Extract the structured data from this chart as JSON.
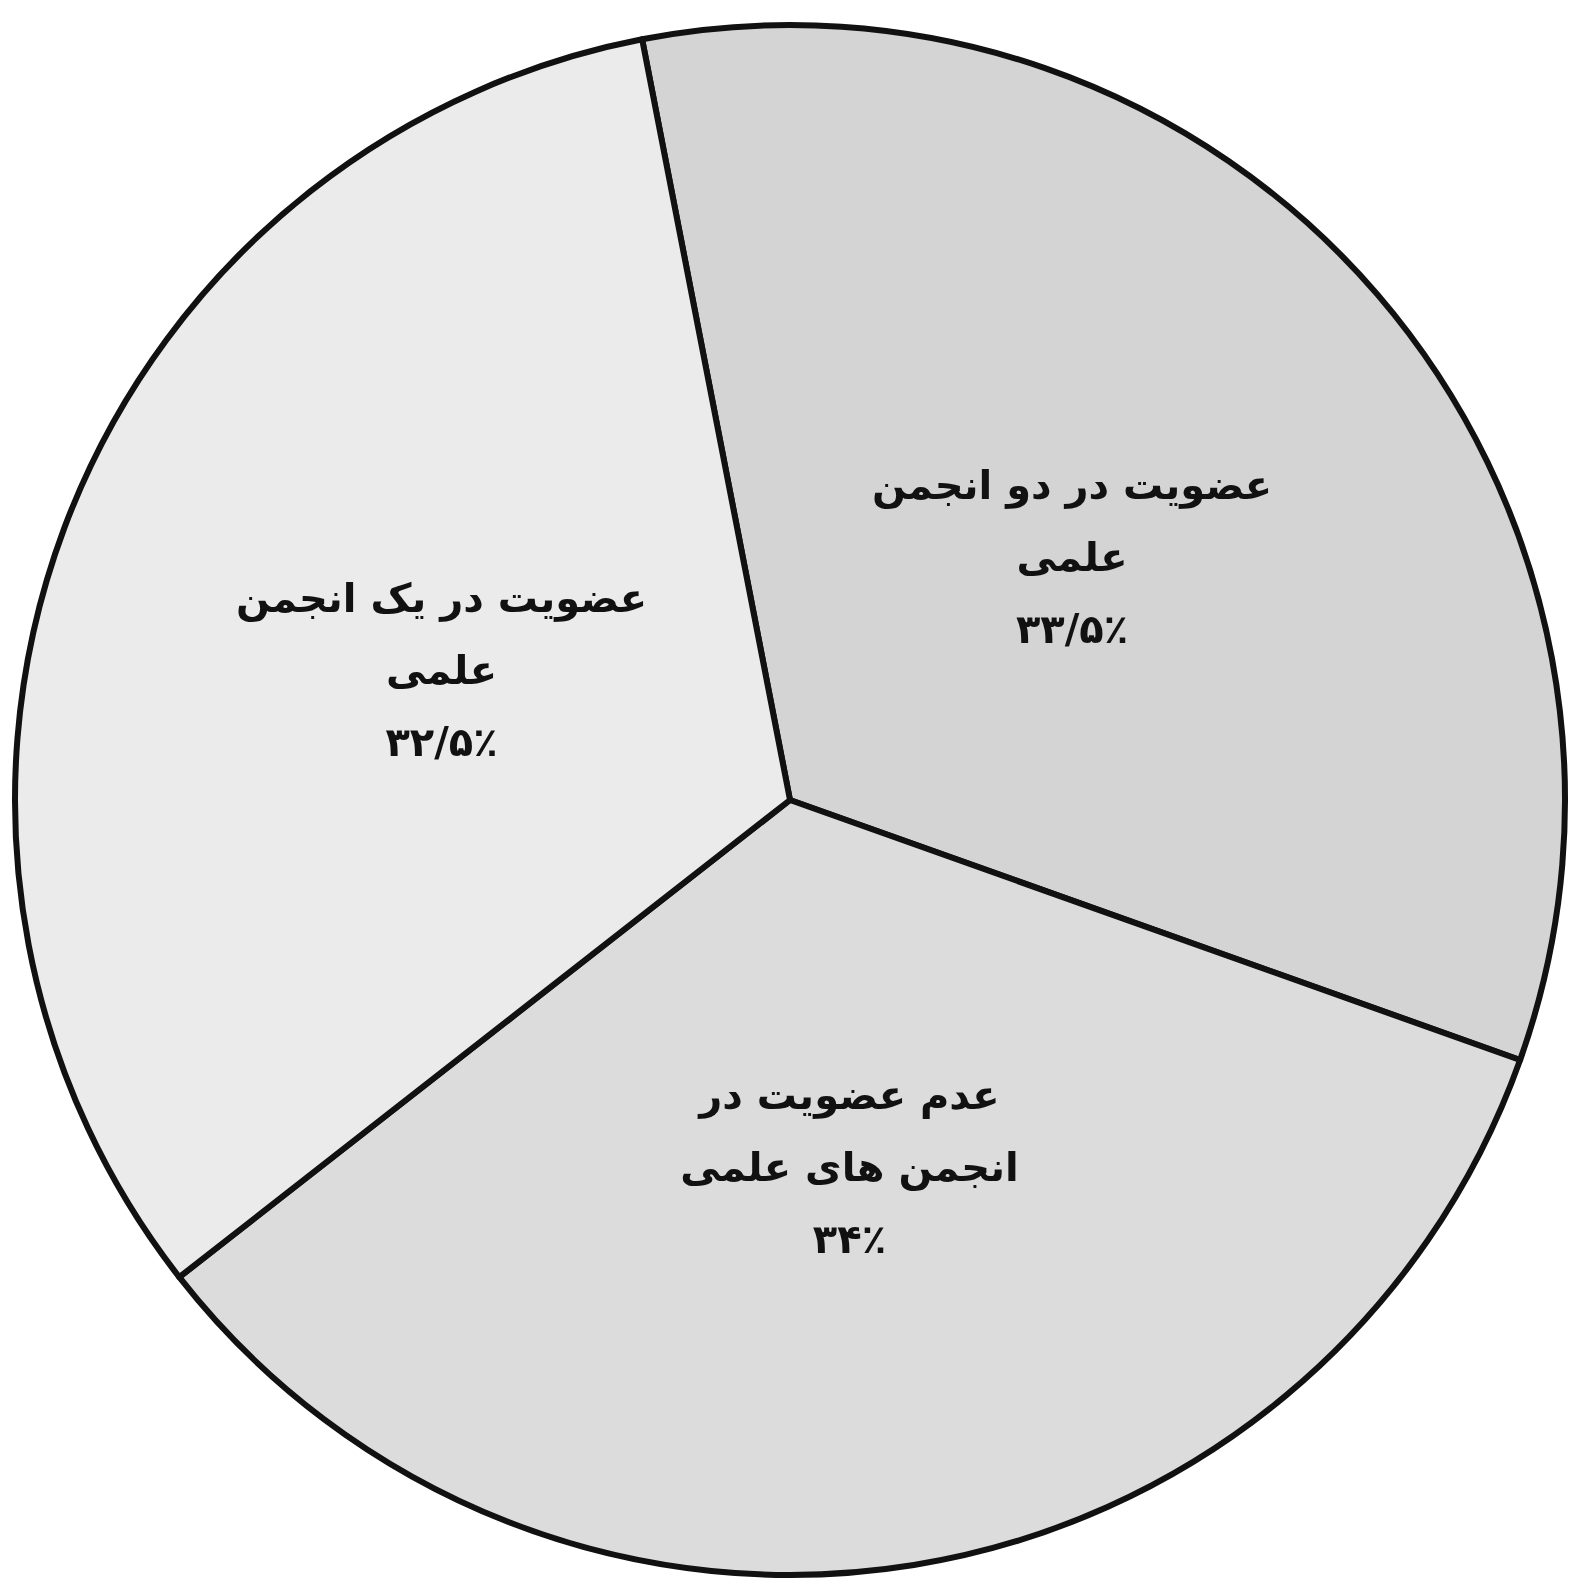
{
  "chart_data": {
    "type": "pie",
    "categories": [
      "عضویت در دو انجمن علمی",
      "عدم عضویت در انجمن های علمی",
      "عضویت در یک انجمن علمی"
    ],
    "values": [
      33.5,
      34,
      32.5
    ],
    "value_labels": [
      "۳۳/۵٪",
      "۳۴٪",
      "۳۲/۵٪"
    ],
    "colors": [
      "#d4d4d4",
      "#dcdcdc",
      "#ebebeb"
    ]
  }
}
